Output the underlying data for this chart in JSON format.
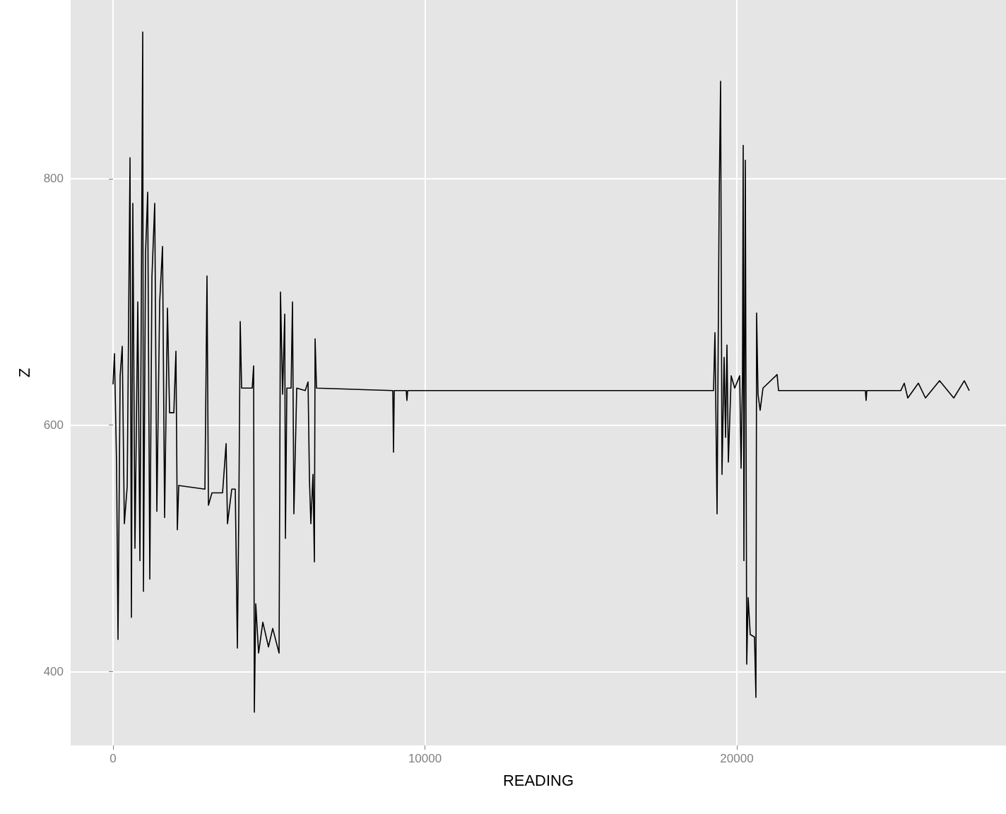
{
  "chart_data": {
    "type": "line",
    "xlabel": "READING",
    "ylabel": "Z",
    "x": [
      0,
      45,
      113,
      159,
      227,
      294,
      362,
      453,
      544,
      589,
      634,
      702,
      793,
      861,
      951,
      974,
      1042,
      1110,
      1178,
      1246,
      1336,
      1404,
      1495,
      1586,
      1653,
      1744,
      1812,
      1948,
      2016,
      2061,
      2106,
      2945,
      3012,
      3058,
      3171,
      3511,
      3624,
      3669,
      3805,
      3918,
      3986,
      4032,
      4077,
      4122,
      4462,
      4507,
      4530,
      4575,
      4666,
      4802,
      4983,
      5119,
      5323,
      5368,
      5436,
      5504,
      5527,
      5572,
      5708,
      5753,
      5798,
      5889,
      6161,
      6252,
      6297,
      6342,
      6410,
      6455,
      6478,
      6523,
      8969,
      8992,
      9015,
      9400,
      9422,
      9445,
      19253,
      19298,
      19366,
      19434,
      19479,
      19524,
      19592,
      19638,
      19683,
      19728,
      19819,
      19932,
      20091,
      20136,
      20181,
      20204,
      20226,
      20272,
      20317,
      20362,
      20430,
      20566,
      20612,
      20634,
      20679,
      20747,
      20838,
      21291,
      21336,
      24122,
      24144,
      24167,
      25255,
      25368,
      25481,
      25821,
      26048,
      26500,
      26954,
      27293,
      27452
    ],
    "series": [
      {
        "color": "#000000",
        "values": [
          633,
          658,
          567,
          426,
          640,
          664,
          520,
          550,
          817,
          444,
          780,
          500,
          700,
          490,
          919,
          465,
          740,
          789,
          475,
          720,
          780,
          530,
          700,
          745,
          525,
          695,
          610,
          610,
          660,
          515,
          551,
          548,
          721,
          535,
          545,
          545,
          585,
          520,
          548,
          548,
          419,
          530,
          684,
          630,
          630,
          648,
          367,
          455,
          415,
          440,
          420,
          435,
          415,
          708,
          625,
          690,
          508,
          630,
          630,
          700,
          528,
          630,
          628,
          635,
          555,
          520,
          560,
          489,
          670,
          630,
          628,
          578,
          628,
          628,
          620,
          628,
          628,
          675,
          528,
          785,
          879,
          560,
          655,
          590,
          665,
          570,
          640,
          630,
          640,
          565,
          640,
          827,
          490,
          815,
          406,
          460,
          430,
          428,
          379,
          691,
          625,
          612,
          630,
          641,
          628,
          628,
          620,
          628,
          628,
          634,
          622,
          634,
          622,
          636,
          622,
          636,
          628
        ]
      }
    ],
    "xlim": [
      -1360,
      28630
    ],
    "ylim": [
      340,
      945
    ],
    "xticks": [
      0,
      10000,
      20000
    ],
    "yticks": [
      400,
      600,
      800
    ],
    "grid": true,
    "marker": "none",
    "line_style": "solid"
  }
}
